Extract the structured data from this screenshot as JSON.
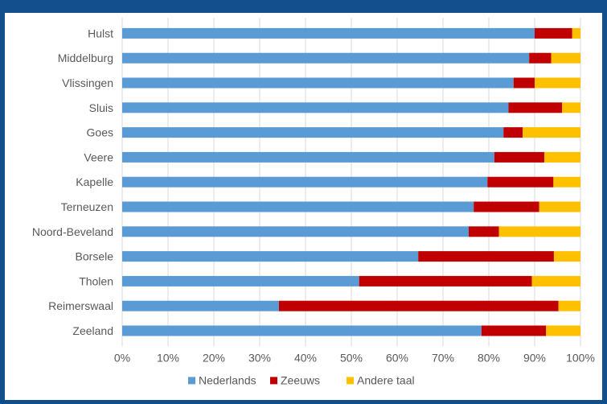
{
  "chart_data": {
    "type": "bar",
    "orientation": "horizontal",
    "stacked": true,
    "percent": true,
    "categories": [
      "Hulst",
      "Middelburg",
      "Vlissingen",
      "Sluis",
      "Goes",
      "Veere",
      "Kapelle",
      "Terneuzen",
      "Noord-Beveland",
      "Borsele",
      "Tholen",
      "Reimerswaal",
      "Zeeland"
    ],
    "series": [
      {
        "name": "Nederlands",
        "color": "#5b9bd5",
        "values": [
          90.0,
          88.8,
          85.4,
          84.3,
          83.2,
          81.2,
          79.7,
          76.7,
          75.6,
          64.6,
          51.7,
          34.2,
          78.4
        ]
      },
      {
        "name": "Zeeuws",
        "color": "#c00000",
        "values": [
          8.2,
          4.8,
          4.6,
          11.7,
          4.2,
          10.9,
          14.4,
          14.3,
          6.6,
          29.6,
          37.7,
          61.0,
          14.1
        ]
      },
      {
        "name": "Andere taal",
        "color": "#ffc000",
        "values": [
          1.8,
          6.4,
          10.0,
          4.0,
          12.6,
          7.9,
          5.9,
          9.0,
          17.8,
          5.8,
          10.6,
          4.8,
          7.5
        ]
      }
    ],
    "xlim": [
      0,
      100
    ],
    "xticks": [
      "0%",
      "10%",
      "20%",
      "30%",
      "40%",
      "50%",
      "60%",
      "70%",
      "80%",
      "90%",
      "100%"
    ],
    "grid": true,
    "legend_position": "bottom"
  }
}
